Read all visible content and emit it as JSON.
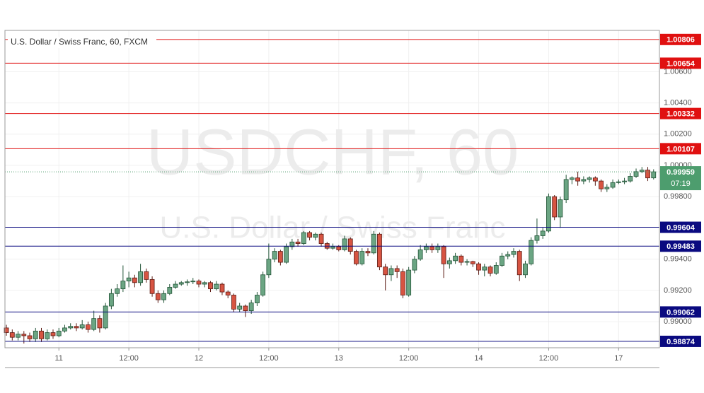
{
  "chart_data": {
    "type": "candlestick",
    "title": "U.S. Dollar / Swiss Franc, 60, FXCM",
    "watermark": "USDCHF, 60",
    "watermark_subtitle": "U.S. Dollar / Swiss Franc",
    "up_color": "#6ba583",
    "down_color": "#d75442",
    "grid": true,
    "xlim": [
      -0.25,
      112
    ],
    "xticks": [
      {
        "value": 9,
        "label": "11"
      },
      {
        "value": 21,
        "label": "12:00"
      },
      {
        "value": 33,
        "label": "12"
      },
      {
        "value": 45,
        "label": "12:00"
      },
      {
        "value": 57,
        "label": "13"
      },
      {
        "value": 69,
        "label": "12:00"
      },
      {
        "value": 81,
        "label": "14"
      },
      {
        "value": 93,
        "label": "12:00"
      },
      {
        "value": 105,
        "label": "17"
      }
    ],
    "ylim": [
      0.98833,
      1.00864
    ],
    "yticks": [
      {
        "value": 0.99,
        "label": "0.99000"
      },
      {
        "value": 0.992,
        "label": "0.99200"
      },
      {
        "value": 0.994,
        "label": "0.99400"
      },
      {
        "value": 0.998,
        "label": "0.99800"
      },
      {
        "value": 1,
        "label": "1.00000"
      },
      {
        "value": 1.002,
        "label": "1.00200"
      },
      {
        "value": 1.004,
        "label": "1.00400"
      },
      {
        "value": 1.006,
        "label": "1.00600"
      }
    ],
    "levels": [
      {
        "value": 1.00806,
        "color": "#e01010"
      },
      {
        "value": 1.00654,
        "color": "#e01010"
      },
      {
        "value": 1.00332,
        "color": "#e01010"
      },
      {
        "value": 1.00107,
        "color": "#e01010"
      },
      {
        "value": 0.99604,
        "color": "#0a0a80"
      },
      {
        "value": 0.99483,
        "color": "#0a0a80"
      },
      {
        "value": 0.99062,
        "color": "#0a0a80"
      },
      {
        "value": 0.98874,
        "color": "#0a0a80"
      }
    ],
    "last_price": {
      "value": 0.99959,
      "countdown": "07:19",
      "color": "#4d9d6e"
    },
    "ohlc": [
      [
        0.9896,
        0.9898,
        0.9891,
        0.9893
      ],
      [
        0.9893,
        0.9895,
        0.9888,
        0.989
      ],
      [
        0.989,
        0.9894,
        0.9888,
        0.9892
      ],
      [
        0.9892,
        0.9894,
        0.9886,
        0.9891
      ],
      [
        0.9891,
        0.9893,
        0.9887,
        0.9889
      ],
      [
        0.9889,
        0.9896,
        0.9887,
        0.9894
      ],
      [
        0.9894,
        0.9896,
        0.9887,
        0.9889
      ],
      [
        0.9889,
        0.9895,
        0.9888,
        0.9893
      ],
      [
        0.9893,
        0.9895,
        0.9889,
        0.9891
      ],
      [
        0.9891,
        0.9896,
        0.989,
        0.9894
      ],
      [
        0.9894,
        0.9898,
        0.9893,
        0.9896
      ],
      [
        0.9896,
        0.9899,
        0.9895,
        0.9897
      ],
      [
        0.9897,
        0.9899,
        0.9894,
        0.9896
      ],
      [
        0.9896,
        0.9901,
        0.9895,
        0.9898
      ],
      [
        0.9898,
        0.99,
        0.9893,
        0.9895
      ],
      [
        0.9895,
        0.9907,
        0.9894,
        0.9902
      ],
      [
        0.9902,
        0.9904,
        0.9893,
        0.9896
      ],
      [
        0.9896,
        0.9912,
        0.9895,
        0.991
      ],
      [
        0.991,
        0.9921,
        0.9908,
        0.9918
      ],
      [
        0.9918,
        0.9924,
        0.9916,
        0.9921
      ],
      [
        0.9921,
        0.9936,
        0.9919,
        0.9926
      ],
      [
        0.9926,
        0.9932,
        0.9922,
        0.9928
      ],
      [
        0.9928,
        0.993,
        0.9922,
        0.9925
      ],
      [
        0.9925,
        0.9937,
        0.9923,
        0.9932
      ],
      [
        0.9932,
        0.9934,
        0.9925,
        0.9927
      ],
      [
        0.9927,
        0.9929,
        0.9916,
        0.9918
      ],
      [
        0.9918,
        0.992,
        0.9912,
        0.9914
      ],
      [
        0.9914,
        0.992,
        0.9912,
        0.9918
      ],
      [
        0.9918,
        0.9924,
        0.9917,
        0.9922
      ],
      [
        0.9922,
        0.9926,
        0.9921,
        0.9924
      ],
      [
        0.9924,
        0.9926,
        0.9923,
        0.9925
      ],
      [
        0.9925,
        0.9927,
        0.9923,
        0.99255
      ],
      [
        0.99255,
        0.9928,
        0.9924,
        0.9926
      ],
      [
        0.9926,
        0.9927,
        0.9922,
        0.9924
      ],
      [
        0.9924,
        0.9926,
        0.9922,
        0.9925
      ],
      [
        0.9925,
        0.9926,
        0.9919,
        0.9921
      ],
      [
        0.9921,
        0.9926,
        0.992,
        0.9924
      ],
      [
        0.9924,
        0.9925,
        0.9917,
        0.9919
      ],
      [
        0.9919,
        0.992,
        0.9915,
        0.9917
      ],
      [
        0.9917,
        0.9918,
        0.9906,
        0.9908
      ],
      [
        0.9908,
        0.9912,
        0.9906,
        0.991
      ],
      [
        0.991,
        0.9911,
        0.9903,
        0.9907
      ],
      [
        0.9907,
        0.9914,
        0.9905,
        0.9912
      ],
      [
        0.9912,
        0.9919,
        0.991,
        0.9917
      ],
      [
        0.9917,
        0.9932,
        0.9916,
        0.993
      ],
      [
        0.993,
        0.995,
        0.9928,
        0.994
      ],
      [
        0.994,
        0.9947,
        0.9938,
        0.9945
      ],
      [
        0.9945,
        0.9946,
        0.9936,
        0.9938
      ],
      [
        0.9938,
        0.995,
        0.9937,
        0.9948
      ],
      [
        0.9948,
        0.9953,
        0.9946,
        0.9951
      ],
      [
        0.9951,
        0.9953,
        0.9948,
        0.995
      ],
      [
        0.995,
        0.9958,
        0.9949,
        0.9957
      ],
      [
        0.9957,
        0.9958,
        0.9952,
        0.9954
      ],
      [
        0.9954,
        0.9957,
        0.9952,
        0.9956
      ],
      [
        0.9956,
        0.9957,
        0.9948,
        0.995
      ],
      [
        0.995,
        0.9951,
        0.9946,
        0.9947
      ],
      [
        0.9947,
        0.995,
        0.9946,
        0.9948
      ],
      [
        0.9948,
        0.9949,
        0.9945,
        0.9946
      ],
      [
        0.9946,
        0.9955,
        0.9945,
        0.9953
      ],
      [
        0.9953,
        0.9954,
        0.9943,
        0.9945
      ],
      [
        0.9945,
        0.9946,
        0.9936,
        0.9937
      ],
      [
        0.9937,
        0.9947,
        0.9936,
        0.9945
      ],
      [
        0.9945,
        0.9947,
        0.9942,
        0.9944
      ],
      [
        0.9944,
        0.9958,
        0.9943,
        0.9956
      ],
      [
        0.9956,
        0.9957,
        0.9933,
        0.9935
      ],
      [
        0.9935,
        0.9937,
        0.992,
        0.993
      ],
      [
        0.993,
        0.9936,
        0.9926,
        0.9934
      ],
      [
        0.9934,
        0.9936,
        0.9928,
        0.9932
      ],
      [
        0.9932,
        0.9934,
        0.9915,
        0.9917
      ],
      [
        0.9917,
        0.9935,
        0.9916,
        0.9933
      ],
      [
        0.9933,
        0.9942,
        0.9931,
        0.994
      ],
      [
        0.994,
        0.9949,
        0.9939,
        0.9946
      ],
      [
        0.9946,
        0.995,
        0.9944,
        0.9948
      ],
      [
        0.9948,
        0.995,
        0.9944,
        0.9946
      ],
      [
        0.9946,
        0.995,
        0.9944,
        0.9948
      ],
      [
        0.9948,
        0.9949,
        0.9928,
        0.9937
      ],
      [
        0.9937,
        0.9941,
        0.9934,
        0.9939
      ],
      [
        0.9939,
        0.9944,
        0.9937,
        0.9942
      ],
      [
        0.9942,
        0.9943,
        0.9936,
        0.9938
      ],
      [
        0.9938,
        0.994,
        0.9936,
        0.99385
      ],
      [
        0.99385,
        0.9939,
        0.9935,
        0.9937
      ],
      [
        0.9937,
        0.9938,
        0.993,
        0.9933
      ],
      [
        0.9933,
        0.9937,
        0.9929,
        0.9935
      ],
      [
        0.9935,
        0.9936,
        0.9929,
        0.9931
      ],
      [
        0.9931,
        0.9938,
        0.993,
        0.9936
      ],
      [
        0.9936,
        0.9944,
        0.9935,
        0.9942
      ],
      [
        0.9942,
        0.9945,
        0.994,
        0.9943
      ],
      [
        0.9943,
        0.9947,
        0.9941,
        0.9945
      ],
      [
        0.9945,
        0.9946,
        0.9926,
        0.993
      ],
      [
        0.993,
        0.9939,
        0.9928,
        0.9937
      ],
      [
        0.9937,
        0.9954,
        0.9936,
        0.9952
      ],
      [
        0.9952,
        0.9966,
        0.995,
        0.9955
      ],
      [
        0.9955,
        0.996,
        0.9953,
        0.9958
      ],
      [
        0.9958,
        0.9982,
        0.9957,
        0.998
      ],
      [
        0.998,
        0.9981,
        0.9965,
        0.9967
      ],
      [
        0.9967,
        0.998,
        0.996,
        0.9978
      ],
      [
        0.9978,
        0.9994,
        0.9976,
        0.9991
      ],
      [
        0.9991,
        0.9993,
        0.9988,
        0.9992
      ],
      [
        0.9992,
        0.9996,
        0.9987,
        0.999
      ],
      [
        0.999,
        0.9993,
        0.9988,
        0.9991
      ],
      [
        0.9991,
        0.9993,
        0.9989,
        0.9992
      ],
      [
        0.9992,
        0.9993,
        0.9987,
        0.999
      ],
      [
        0.999,
        0.9991,
        0.9983,
        0.9985
      ],
      [
        0.9985,
        0.9988,
        0.9983,
        0.9986
      ],
      [
        0.9986,
        0.9991,
        0.9985,
        0.9989
      ],
      [
        0.9989,
        0.9991,
        0.9988,
        0.99895
      ],
      [
        0.99895,
        0.9992,
        0.9988,
        0.999
      ],
      [
        0.999,
        0.9995,
        0.9989,
        0.9993
      ],
      [
        0.9993,
        0.9998,
        0.9992,
        0.9996
      ],
      [
        0.9996,
        0.9999,
        0.9995,
        0.9997
      ],
      [
        0.9997,
        0.9999,
        0.999,
        0.9992
      ],
      [
        0.9992,
        0.99975,
        0.9991,
        0.99959
      ]
    ]
  }
}
